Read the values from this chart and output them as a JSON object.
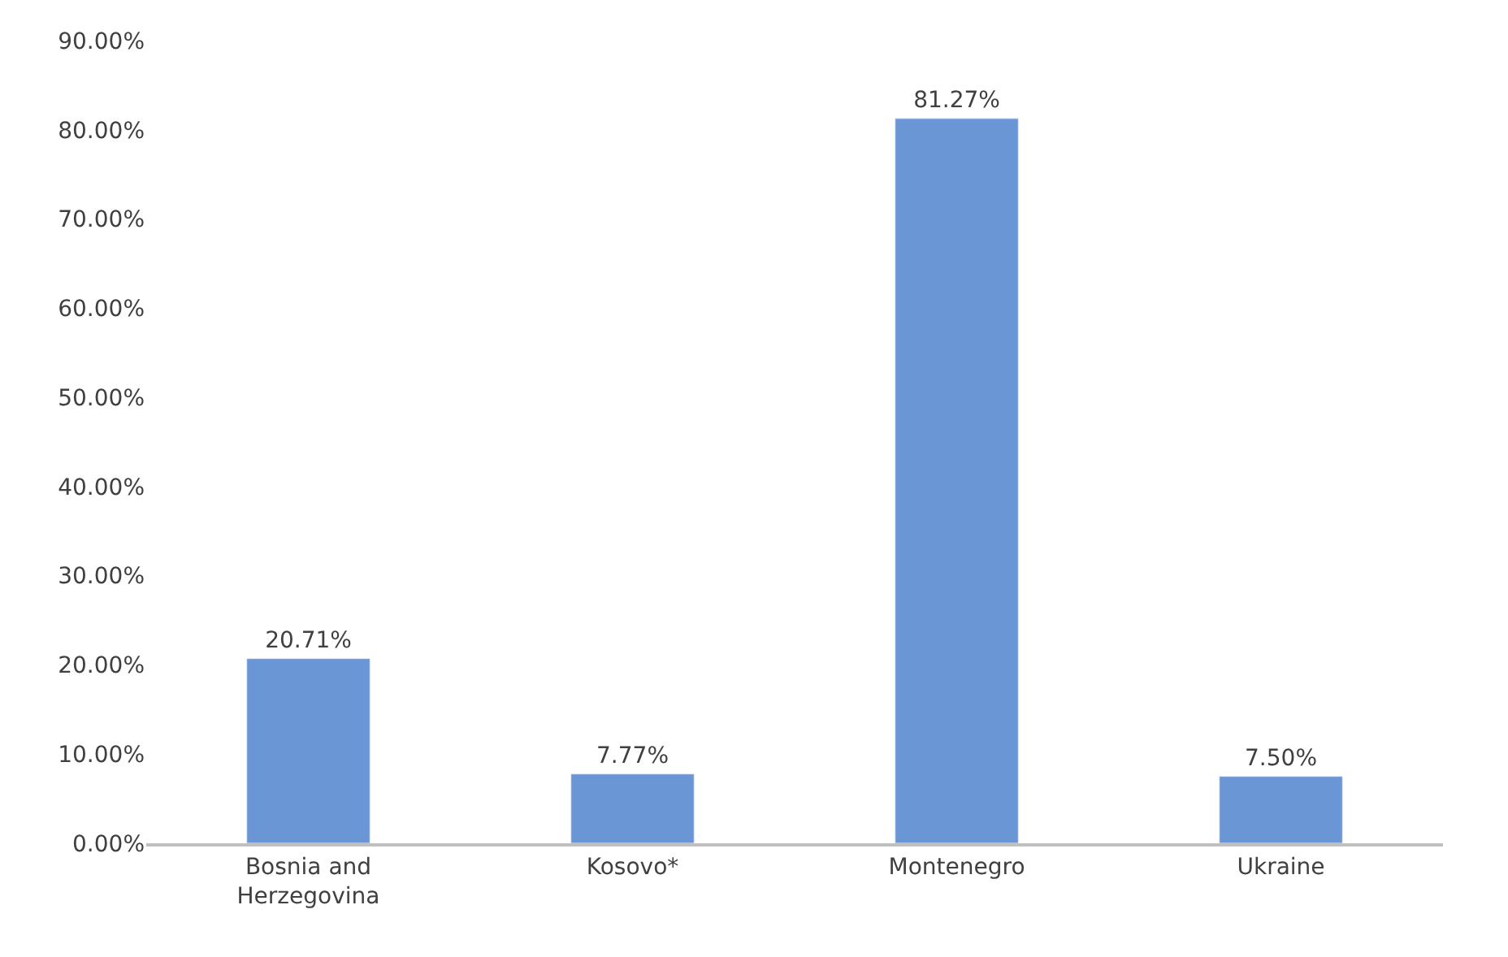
{
  "chart_data": {
    "type": "bar",
    "categories": [
      "Bosnia and Herzegovina",
      "Kosovo*",
      "Montenegro",
      "Ukraine"
    ],
    "values": [
      20.71,
      7.77,
      81.27,
      7.5
    ],
    "value_labels": [
      "20.71%",
      "7.77%",
      "81.27%",
      "7.50%"
    ],
    "color": "#6b96d6",
    "ylim": [
      0,
      90
    ],
    "yticks": [
      {
        "value": 0,
        "label": "0.00%"
      },
      {
        "value": 10,
        "label": "10.00%"
      },
      {
        "value": 20,
        "label": "20.00%"
      },
      {
        "value": 30,
        "label": "30.00%"
      },
      {
        "value": 40,
        "label": "40.00%"
      },
      {
        "value": 50,
        "label": "50.00%"
      },
      {
        "value": 60,
        "label": "60.00%"
      },
      {
        "value": 70,
        "label": "70.00%"
      },
      {
        "value": 80,
        "label": "80.00%"
      },
      {
        "value": 90,
        "label": "90.00%"
      }
    ],
    "grid": false
  }
}
